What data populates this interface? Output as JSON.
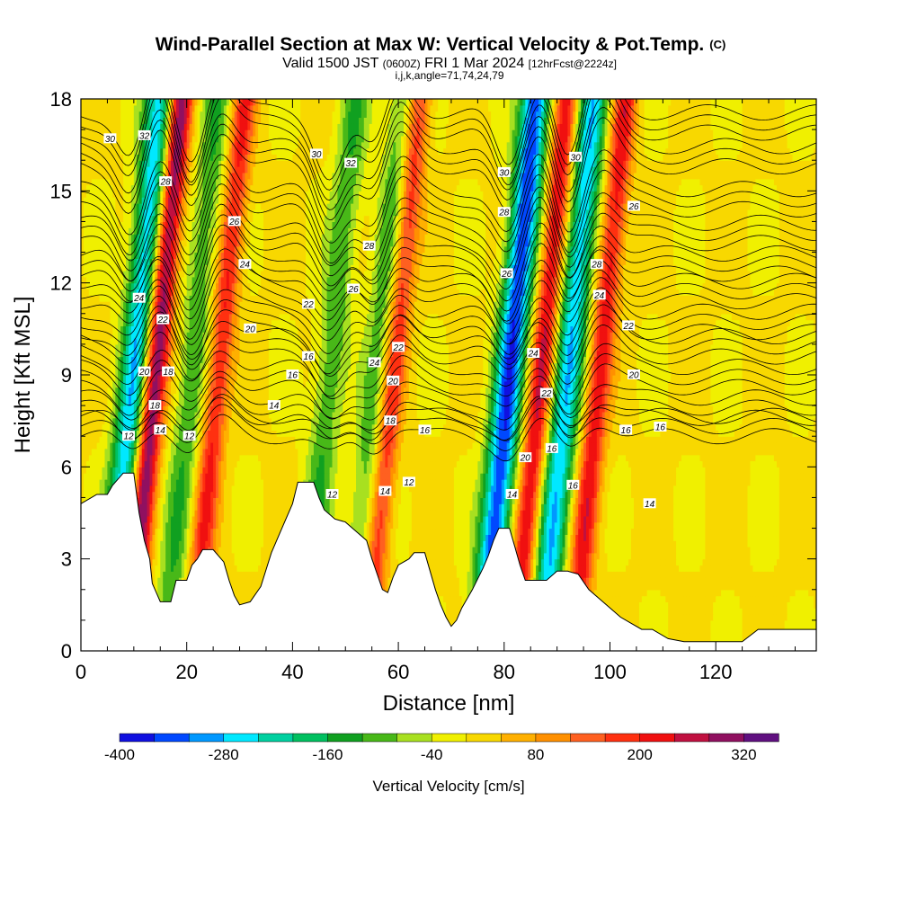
{
  "chart_data": {
    "type": "heatmap",
    "title": "Wind-Parallel Section at Max W: Vertical Velocity & Pot.Temp.",
    "title_mark": "(C)",
    "subtitle_parts": [
      "Valid 1500 JST",
      "(0600Z)",
      "FRI 1 Mar 2024",
      "[12hrFcst@2224z]"
    ],
    "subtitle2": "i,j,k,angle=71,74,24,79",
    "xlabel": "Distance [nm]",
    "ylabel": "Height [Kft MSL]",
    "xlim": [
      0,
      139
    ],
    "ylim": [
      0,
      18
    ],
    "x_ticks": [
      "0",
      "20",
      "40",
      "60",
      "80",
      "100",
      "120"
    ],
    "y_ticks": [
      "0",
      "3",
      "6",
      "9",
      "12",
      "15",
      "18"
    ],
    "grid": false,
    "colorbar": {
      "label": "Vertical Velocity [cm/s]",
      "min": -400,
      "max": 360,
      "tick_values": [
        -400,
        -280,
        -160,
        -40,
        80,
        200,
        320
      ],
      "tick_labels": [
        "-400",
        "-280",
        "-160",
        "-40",
        "80",
        "200",
        "320"
      ],
      "colors": [
        "#1010e0",
        "#0048ff",
        "#0098ff",
        "#00e8ff",
        "#00d0a0",
        "#00c060",
        "#10a020",
        "#48b818",
        "#a8e020",
        "#f0f000",
        "#f8d800",
        "#ffb000",
        "#ff9000",
        "#ff6020",
        "#ff3010",
        "#f01010",
        "#c01040",
        "#901060",
        "#601080"
      ]
    },
    "updrafts": [
      {
        "x": 14,
        "peak_w": 320
      },
      {
        "x": 26,
        "peak_w": 200
      },
      {
        "x": 59,
        "peak_w": 200
      },
      {
        "x": 87,
        "peak_w": 240
      },
      {
        "x": 98,
        "peak_w": 220
      }
    ],
    "downdrafts": [
      {
        "x": 10,
        "peak_w": -280
      },
      {
        "x": 21,
        "peak_w": -120
      },
      {
        "x": 47,
        "peak_w": -120
      },
      {
        "x": 56,
        "peak_w": -120
      },
      {
        "x": 81,
        "peak_w": -360
      },
      {
        "x": 92,
        "peak_w": -280
      }
    ],
    "terrain": [
      {
        "x": 0,
        "y": 4.8
      },
      {
        "x": 3,
        "y": 5.1
      },
      {
        "x": 5,
        "y": 5.1
      },
      {
        "x": 6,
        "y": 5.4
      },
      {
        "x": 8,
        "y": 5.8
      },
      {
        "x": 10,
        "y": 5.8
      },
      {
        "x": 11,
        "y": 4.5
      },
      {
        "x": 12,
        "y": 3.6
      },
      {
        "x": 13,
        "y": 3.0
      },
      {
        "x": 13.5,
        "y": 2.2
      },
      {
        "x": 14,
        "y": 2.0
      },
      {
        "x": 15,
        "y": 1.6
      },
      {
        "x": 17,
        "y": 1.6
      },
      {
        "x": 18,
        "y": 2.3
      },
      {
        "x": 20,
        "y": 2.3
      },
      {
        "x": 21,
        "y": 2.8
      },
      {
        "x": 22,
        "y": 3.0
      },
      {
        "x": 23,
        "y": 3.3
      },
      {
        "x": 25,
        "y": 3.3
      },
      {
        "x": 27,
        "y": 2.9
      },
      {
        "x": 28,
        "y": 2.3
      },
      {
        "x": 29,
        "y": 1.8
      },
      {
        "x": 30,
        "y": 1.5
      },
      {
        "x": 32,
        "y": 1.6
      },
      {
        "x": 34,
        "y": 2.1
      },
      {
        "x": 36,
        "y": 3.2
      },
      {
        "x": 38,
        "y": 4.0
      },
      {
        "x": 40,
        "y": 4.8
      },
      {
        "x": 41,
        "y": 5.5
      },
      {
        "x": 44,
        "y": 5.5
      },
      {
        "x": 45,
        "y": 5.0
      },
      {
        "x": 46,
        "y": 4.6
      },
      {
        "x": 48,
        "y": 4.3
      },
      {
        "x": 50,
        "y": 4.2
      },
      {
        "x": 52,
        "y": 3.9
      },
      {
        "x": 54,
        "y": 3.6
      },
      {
        "x": 55,
        "y": 3.0
      },
      {
        "x": 56,
        "y": 2.5
      },
      {
        "x": 57,
        "y": 2.0
      },
      {
        "x": 58,
        "y": 1.9
      },
      {
        "x": 59,
        "y": 2.4
      },
      {
        "x": 60,
        "y": 2.8
      },
      {
        "x": 62,
        "y": 3.0
      },
      {
        "x": 63,
        "y": 3.2
      },
      {
        "x": 65,
        "y": 3.2
      },
      {
        "x": 66,
        "y": 2.6
      },
      {
        "x": 67,
        "y": 2.0
      },
      {
        "x": 68,
        "y": 1.5
      },
      {
        "x": 69,
        "y": 1.1
      },
      {
        "x": 70,
        "y": 0.8
      },
      {
        "x": 71,
        "y": 1.0
      },
      {
        "x": 72,
        "y": 1.4
      },
      {
        "x": 74,
        "y": 2.0
      },
      {
        "x": 76,
        "y": 2.7
      },
      {
        "x": 77,
        "y": 3.1
      },
      {
        "x": 78,
        "y": 3.6
      },
      {
        "x": 79,
        "y": 4.0
      },
      {
        "x": 81,
        "y": 4.0
      },
      {
        "x": 82,
        "y": 3.4
      },
      {
        "x": 83,
        "y": 2.8
      },
      {
        "x": 84,
        "y": 2.3
      },
      {
        "x": 85,
        "y": 2.3
      },
      {
        "x": 86,
        "y": 2.3
      },
      {
        "x": 88,
        "y": 2.3
      },
      {
        "x": 90,
        "y": 2.6
      },
      {
        "x": 92,
        "y": 2.6
      },
      {
        "x": 94,
        "y": 2.5
      },
      {
        "x": 96,
        "y": 2.0
      },
      {
        "x": 98,
        "y": 1.7
      },
      {
        "x": 100,
        "y": 1.4
      },
      {
        "x": 102,
        "y": 1.1
      },
      {
        "x": 104,
        "y": 0.9
      },
      {
        "x": 106,
        "y": 0.7
      },
      {
        "x": 108,
        "y": 0.7
      },
      {
        "x": 111,
        "y": 0.4
      },
      {
        "x": 114,
        "y": 0.3
      },
      {
        "x": 125,
        "y": 0.3
      },
      {
        "x": 128,
        "y": 0.7
      },
      {
        "x": 139,
        "y": 0.7
      }
    ],
    "theta_contours": [
      {
        "label": "12",
        "base": 7.0
      },
      {
        "label": "14",
        "base": 7.6
      },
      {
        "label": "16",
        "base": 8.6
      },
      {
        "label": "18",
        "base": 9.6
      },
      {
        "label": "20",
        "base": 10.4
      },
      {
        "label": "22",
        "base": 11.4
      },
      {
        "label": "24",
        "base": 12.3
      },
      {
        "label": "26",
        "base": 13.3
      },
      {
        "label": "28",
        "base": 14.4
      },
      {
        "label": "30",
        "base": 15.8
      },
      {
        "label": "32",
        "base": 16.9
      }
    ],
    "contour_label_positions": [
      {
        "text": "30",
        "x": 5.5,
        "y": 16.7
      },
      {
        "text": "32",
        "x": 12,
        "y": 16.8
      },
      {
        "text": "28",
        "x": 16,
        "y": 15.3
      },
      {
        "text": "26",
        "x": 29,
        "y": 14.0
      },
      {
        "text": "24",
        "x": 31,
        "y": 12.6
      },
      {
        "text": "22",
        "x": 15.5,
        "y": 10.8
      },
      {
        "text": "24",
        "x": 11,
        "y": 11.5
      },
      {
        "text": "20",
        "x": 12,
        "y": 9.1
      },
      {
        "text": "18",
        "x": 16.5,
        "y": 9.1
      },
      {
        "text": "18",
        "x": 14,
        "y": 8.0
      },
      {
        "text": "14",
        "x": 15,
        "y": 7.2
      },
      {
        "text": "12",
        "x": 9,
        "y": 7.0
      },
      {
        "text": "12",
        "x": 20.5,
        "y": 7.0
      },
      {
        "text": "20",
        "x": 32,
        "y": 10.5
      },
      {
        "text": "14",
        "x": 36.5,
        "y": 8.0
      },
      {
        "text": "16",
        "x": 40,
        "y": 9.0
      },
      {
        "text": "16",
        "x": 43,
        "y": 9.6
      },
      {
        "text": "22",
        "x": 43,
        "y": 11.3
      },
      {
        "text": "30",
        "x": 44.5,
        "y": 16.2
      },
      {
        "text": "32",
        "x": 51,
        "y": 15.9
      },
      {
        "text": "28",
        "x": 54.5,
        "y": 13.2
      },
      {
        "text": "26",
        "x": 51.5,
        "y": 11.8
      },
      {
        "text": "24",
        "x": 55.5,
        "y": 9.4
      },
      {
        "text": "22",
        "x": 60,
        "y": 9.9
      },
      {
        "text": "20",
        "x": 59,
        "y": 8.8
      },
      {
        "text": "18",
        "x": 58.5,
        "y": 7.5
      },
      {
        "text": "16",
        "x": 65,
        "y": 7.2
      },
      {
        "text": "12",
        "x": 47.5,
        "y": 5.1
      },
      {
        "text": "14",
        "x": 57.5,
        "y": 5.2
      },
      {
        "text": "12",
        "x": 62,
        "y": 5.5
      },
      {
        "text": "30",
        "x": 80,
        "y": 15.6
      },
      {
        "text": "28",
        "x": 80,
        "y": 14.3
      },
      {
        "text": "26",
        "x": 80.5,
        "y": 12.3
      },
      {
        "text": "24",
        "x": 85.5,
        "y": 9.7
      },
      {
        "text": "22",
        "x": 88,
        "y": 8.4
      },
      {
        "text": "20",
        "x": 84,
        "y": 6.3
      },
      {
        "text": "16",
        "x": 89,
        "y": 6.6
      },
      {
        "text": "14",
        "x": 81.5,
        "y": 5.1
      },
      {
        "text": "16",
        "x": 93,
        "y": 5.4
      },
      {
        "text": "30",
        "x": 93.5,
        "y": 16.1
      },
      {
        "text": "28",
        "x": 97.5,
        "y": 12.6
      },
      {
        "text": "24",
        "x": 98,
        "y": 11.6
      },
      {
        "text": "26",
        "x": 104.5,
        "y": 14.5
      },
      {
        "text": "22",
        "x": 103.5,
        "y": 10.6
      },
      {
        "text": "20",
        "x": 104.5,
        "y": 9.0
      },
      {
        "text": "16",
        "x": 103,
        "y": 7.2
      },
      {
        "text": "16",
        "x": 109.5,
        "y": 7.3
      },
      {
        "text": "14",
        "x": 107.5,
        "y": 4.8
      }
    ]
  }
}
